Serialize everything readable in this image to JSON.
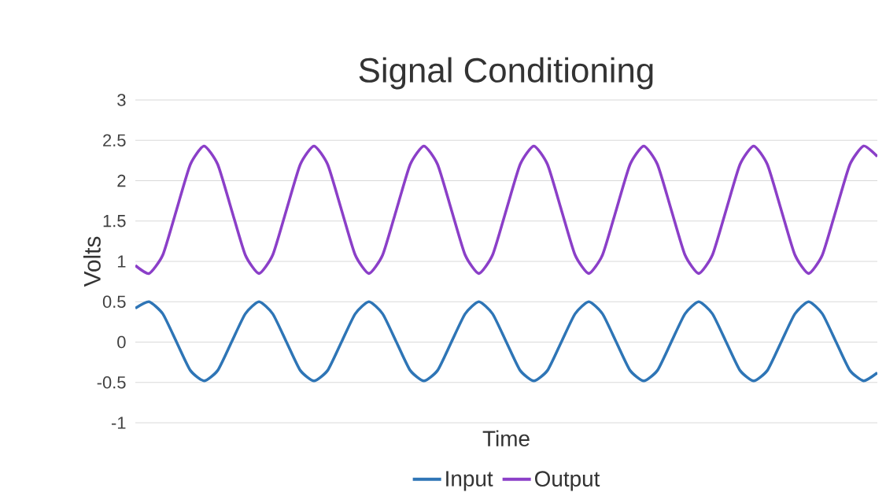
{
  "chart_data": {
    "type": "line",
    "title": "Signal Conditioning",
    "xlabel": "Time",
    "ylabel": "Volts",
    "categories": [
      null,
      null,
      null,
      null,
      null,
      null,
      null,
      null,
      null,
      null,
      null,
      null,
      null,
      null,
      null,
      null,
      null,
      null,
      null,
      null,
      null,
      null,
      null,
      null,
      null,
      null,
      null,
      null,
      null,
      null,
      null,
      null,
      null,
      null,
      null,
      null,
      null,
      null,
      null,
      null,
      null,
      null,
      null,
      null,
      null,
      null,
      null,
      null,
      null,
      null,
      null,
      null,
      null,
      null,
      null
    ],
    "series": [
      {
        "name": "Input",
        "color": "#2e75b6",
        "values": [
          0.42,
          0.5,
          0.35,
          0,
          -0.35,
          -0.48,
          -0.35,
          0,
          0.35,
          0.5,
          0.35,
          0,
          -0.35,
          -0.48,
          -0.35,
          0,
          0.35,
          0.5,
          0.35,
          0,
          -0.35,
          -0.48,
          -0.35,
          0,
          0.35,
          0.5,
          0.35,
          0,
          -0.35,
          -0.48,
          -0.35,
          0,
          0.35,
          0.5,
          0.35,
          0,
          -0.35,
          -0.48,
          -0.35,
          0,
          0.35,
          0.5,
          0.35,
          0,
          -0.35,
          -0.48,
          -0.35,
          0,
          0.35,
          0.5,
          0.35,
          0,
          -0.35,
          -0.48,
          -0.38
        ]
      },
      {
        "name": "Output",
        "color": "#8b3fc8",
        "values": [
          0.95,
          0.85,
          1.08,
          1.64,
          2.2,
          2.43,
          2.2,
          1.64,
          1.08,
          0.85,
          1.08,
          1.64,
          2.2,
          2.43,
          2.2,
          1.64,
          1.08,
          0.85,
          1.08,
          1.64,
          2.2,
          2.43,
          2.2,
          1.64,
          1.08,
          0.85,
          1.08,
          1.64,
          2.2,
          2.43,
          2.2,
          1.64,
          1.08,
          0.85,
          1.08,
          1.64,
          2.2,
          2.43,
          2.2,
          1.64,
          1.08,
          0.85,
          1.08,
          1.64,
          2.2,
          2.43,
          2.2,
          1.64,
          1.08,
          0.85,
          1.08,
          1.64,
          2.2,
          2.43,
          2.3
        ]
      }
    ],
    "ylim": [
      -1,
      3
    ],
    "yticks": [
      -1,
      -0.5,
      0,
      0.5,
      1,
      1.5,
      2,
      2.5,
      3
    ],
    "grid": "y",
    "legend": "bottom",
    "tick_labels": "y",
    "marker": "none",
    "line_style": "solid"
  }
}
